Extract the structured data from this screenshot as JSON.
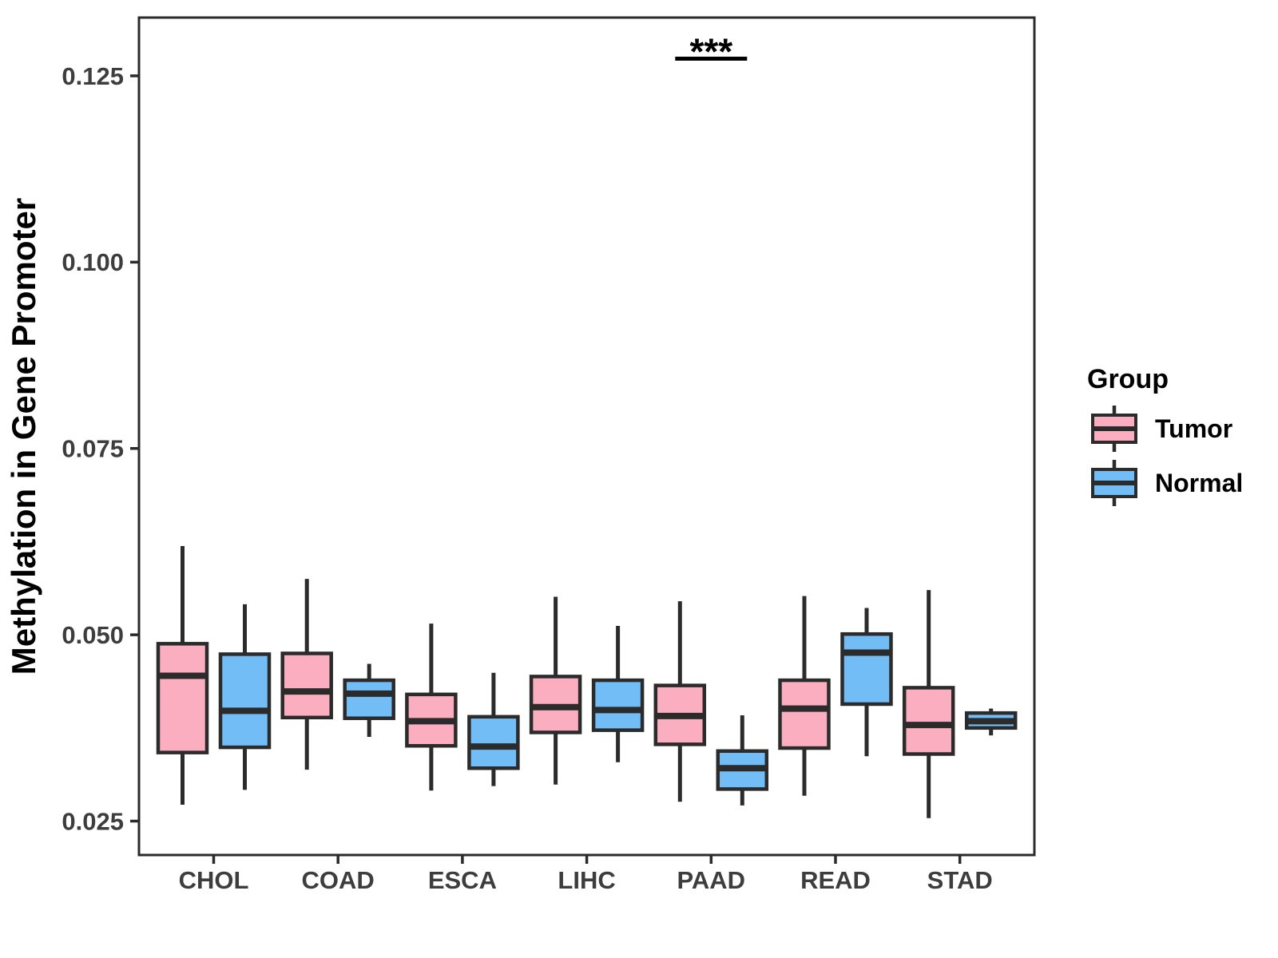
{
  "figure": {
    "y_axis_title": "Methylation in Gene Promoter",
    "legend": {
      "title": "Group",
      "items": [
        {
          "label": "Tumor",
          "color": "#FCAEC1"
        },
        {
          "label": "Normal",
          "color": "#73BDF7"
        }
      ]
    },
    "annotation": {
      "text": "***",
      "category": "PAAD"
    }
  },
  "chart_data": {
    "type": "boxplot",
    "title": "",
    "xlabel": "",
    "ylabel": "Methylation in Gene Promoter",
    "categories": [
      "CHOL",
      "COAD",
      "ESCA",
      "LIHC",
      "PAAD",
      "READ",
      "STAD"
    ],
    "grid": false,
    "panel_border": true,
    "legend_position": "right",
    "ylim": [
      0.02045,
      0.13282
    ],
    "y_ticks": [
      {
        "value": 0.025,
        "label": "0.025"
      },
      {
        "value": 0.05,
        "label": "0.050"
      },
      {
        "value": 0.075,
        "label": "0.075"
      },
      {
        "value": 0.1,
        "label": "0.100"
      },
      {
        "value": 0.125,
        "label": "0.125"
      }
    ],
    "series": [
      {
        "name": "Tumor",
        "color": "#FCAEC1",
        "boxes": [
          {
            "category": "CHOL",
            "min": 0.0272,
            "q1": 0.0342,
            "median": 0.0445,
            "q3": 0.0488,
            "max": 0.0619
          },
          {
            "category": "COAD",
            "min": 0.0319,
            "q1": 0.0389,
            "median": 0.0424,
            "q3": 0.0475,
            "max": 0.0575
          },
          {
            "category": "ESCA",
            "min": 0.0291,
            "q1": 0.0351,
            "median": 0.0384,
            "q3": 0.042,
            "max": 0.0515
          },
          {
            "category": "LIHC",
            "min": 0.0299,
            "q1": 0.0369,
            "median": 0.0403,
            "q3": 0.0444,
            "max": 0.0551
          },
          {
            "category": "PAAD",
            "min": 0.0276,
            "q1": 0.0353,
            "median": 0.0391,
            "q3": 0.0432,
            "max": 0.0545
          },
          {
            "category": "READ",
            "min": 0.0284,
            "q1": 0.0348,
            "median": 0.0401,
            "q3": 0.0439,
            "max": 0.0552
          },
          {
            "category": "STAD",
            "min": 0.0254,
            "q1": 0.034,
            "median": 0.0379,
            "q3": 0.0429,
            "max": 0.056
          }
        ]
      },
      {
        "name": "Normal",
        "color": "#73BDF7",
        "boxes": [
          {
            "category": "CHOL",
            "min": 0.0292,
            "q1": 0.0349,
            "median": 0.0398,
            "q3": 0.0474,
            "max": 0.0541
          },
          {
            "category": "COAD",
            "min": 0.0363,
            "q1": 0.0388,
            "median": 0.0421,
            "q3": 0.0439,
            "max": 0.0461
          },
          {
            "category": "ESCA",
            "min": 0.0297,
            "q1": 0.0321,
            "median": 0.035,
            "q3": 0.039,
            "max": 0.0449
          },
          {
            "category": "LIHC",
            "min": 0.0329,
            "q1": 0.0372,
            "median": 0.0399,
            "q3": 0.0439,
            "max": 0.0512
          },
          {
            "category": "PAAD",
            "min": 0.0271,
            "q1": 0.0293,
            "median": 0.0321,
            "q3": 0.0344,
            "max": 0.0392
          },
          {
            "category": "READ",
            "min": 0.0337,
            "q1": 0.0407,
            "median": 0.0476,
            "q3": 0.0501,
            "max": 0.0536
          },
          {
            "category": "STAD",
            "min": 0.0365,
            "q1": 0.0375,
            "median": 0.0384,
            "q3": 0.0395,
            "max": 0.0401
          }
        ]
      }
    ],
    "significance": {
      "category": "PAAD",
      "text": "***",
      "bar_value": 0.1273
    },
    "style_colors": {
      "box_stroke": "#2B2B2B",
      "axis_text": "#3D3D3D",
      "title_text": "#000000",
      "panel_border": "#2B2B2B"
    }
  }
}
